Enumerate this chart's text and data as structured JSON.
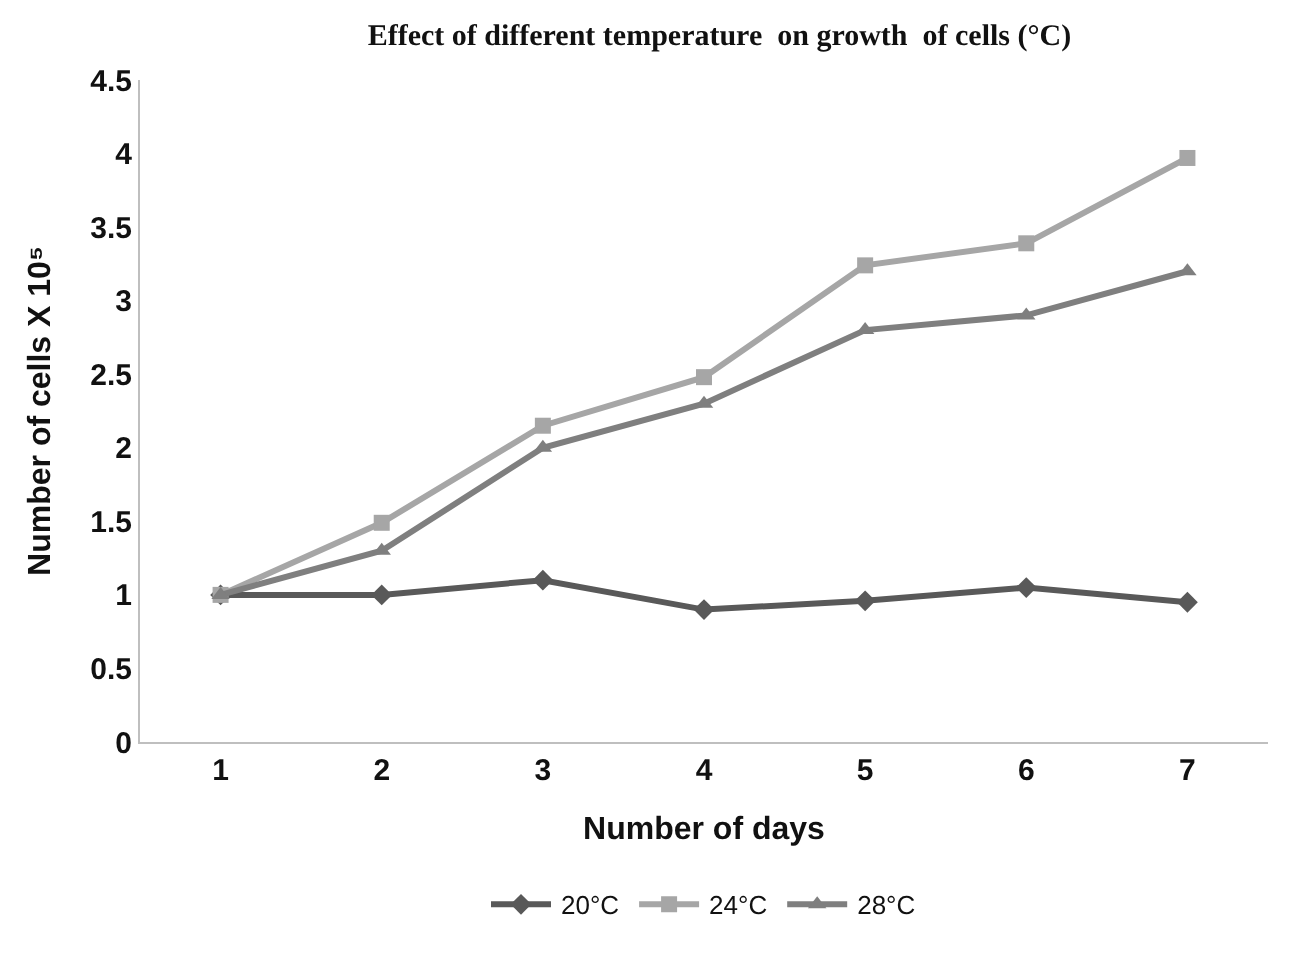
{
  "chart_data": {
    "type": "line",
    "title": "Effect of different temperature  on growth  of cells (°C)",
    "xlabel": "Number of days",
    "ylabel": "Number of cells X 10⁵",
    "categories": [
      "1",
      "2",
      "3",
      "4",
      "5",
      "6",
      "7"
    ],
    "series": [
      {
        "name": "20°C",
        "color": "#595959",
        "marker": "diamond",
        "values": [
          1.0,
          1.0,
          1.1,
          0.9,
          0.96,
          1.05,
          0.95
        ]
      },
      {
        "name": "24°C",
        "color": "#a6a6a6",
        "marker": "square",
        "values": [
          1.0,
          1.49,
          2.15,
          2.48,
          3.24,
          3.39,
          3.97
        ]
      },
      {
        "name": "28°C",
        "color": "#7f7f7f",
        "marker": "triangle",
        "values": [
          1.0,
          1.3,
          2.0,
          2.3,
          2.8,
          2.9,
          3.2
        ]
      }
    ],
    "ylim": [
      0,
      4.5
    ],
    "yticks": [
      0,
      0.5,
      1,
      1.5,
      2,
      2.5,
      3,
      3.5,
      4,
      4.5
    ],
    "legend": "bottom"
  }
}
